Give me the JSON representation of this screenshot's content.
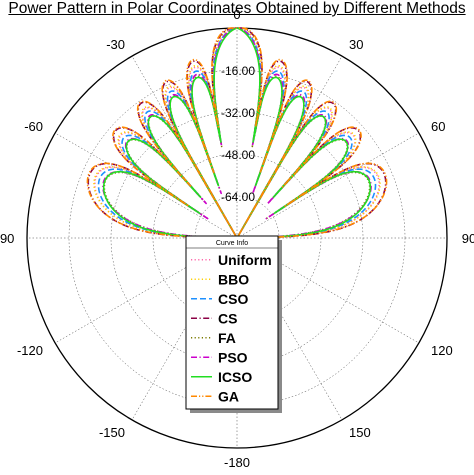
{
  "chart_data": {
    "type": "polar-line",
    "title": "Power Pattern in Polar Coordinates Obtained by Different Methods",
    "angle_ticks": [
      "0",
      "30",
      "60",
      "90",
      "120",
      "150",
      "-180",
      "-150",
      "-120",
      "-90",
      "-60",
      "-30"
    ],
    "angle_tick_values": [
      0,
      30,
      60,
      90,
      120,
      150,
      180,
      -150,
      -120,
      -90,
      -60,
      -30
    ],
    "radial_ticks": [
      "-16.00",
      "-32.00",
      "-48.00",
      "-64.00"
    ],
    "radial_tick_values": [
      -16,
      -32,
      -48,
      -64
    ],
    "radial_range": [
      -80,
      0
    ],
    "unit_hint": "dB",
    "legend": {
      "title": "Curve Info",
      "placement": "bottom-center"
    },
    "series": [
      {
        "name": "Uniform",
        "color": "#ff66aa",
        "dash": "dot",
        "shift": 0.0,
        "scale": 1.0,
        "sidelobe_levels_db": [
          -13.5,
          -17.5,
          -20.5,
          -22.5,
          -24.5,
          -26.5
        ]
      },
      {
        "name": "BBO",
        "color": "#ffd000",
        "dash": "dot",
        "shift": 1.0,
        "scale": 1.03,
        "sidelobe_levels_db": [
          -13.5,
          -17.5,
          -20.5,
          -22.5,
          -24.5,
          -26.5
        ]
      },
      {
        "name": "CSO",
        "color": "#1e90ff",
        "dash": "dash",
        "shift": -1.5,
        "scale": 1.0,
        "sidelobe_levels_db": [
          -13.5,
          -17.5,
          -20.5,
          -22.5,
          -24.5,
          -26.5
        ]
      },
      {
        "name": "CS",
        "color": "#8b0045",
        "dash": "dash-dot",
        "shift": 2.0,
        "scale": 0.97,
        "sidelobe_levels_db": [
          -13.5,
          -17.5,
          -20.5,
          -22.5,
          -24.5,
          -26.5
        ]
      },
      {
        "name": "FA",
        "color": "#7a7a00",
        "dash": "dot",
        "shift": -3.0,
        "scale": 1.04,
        "sidelobe_levels_db": [
          -13.5,
          -17.5,
          -20.5,
          -22.5,
          -24.5,
          -26.5
        ]
      },
      {
        "name": "PSO",
        "color": "#cc00cc",
        "dash": "dash-dot",
        "shift": -2.0,
        "scale": 1.06,
        "sidelobe_levels_db": [
          -13.5,
          -17.5,
          -20.5,
          -22.5,
          -24.5,
          -26.5
        ]
      },
      {
        "name": "ICSO",
        "color": "#22dd22",
        "dash": "solid",
        "shift": -4.5,
        "scale": 0.96,
        "sidelobe_levels_db": [
          -13.5,
          -17.5,
          -20.5,
          -22.5,
          -24.5,
          -26.5
        ]
      },
      {
        "name": "GA",
        "color": "#ff8800",
        "dash": "dash-dot-dot",
        "shift": 3.0,
        "scale": 1.0,
        "sidelobe_levels_db": [
          -13.5,
          -17.5,
          -20.5,
          -22.5,
          -24.5,
          -26.5
        ]
      }
    ]
  }
}
